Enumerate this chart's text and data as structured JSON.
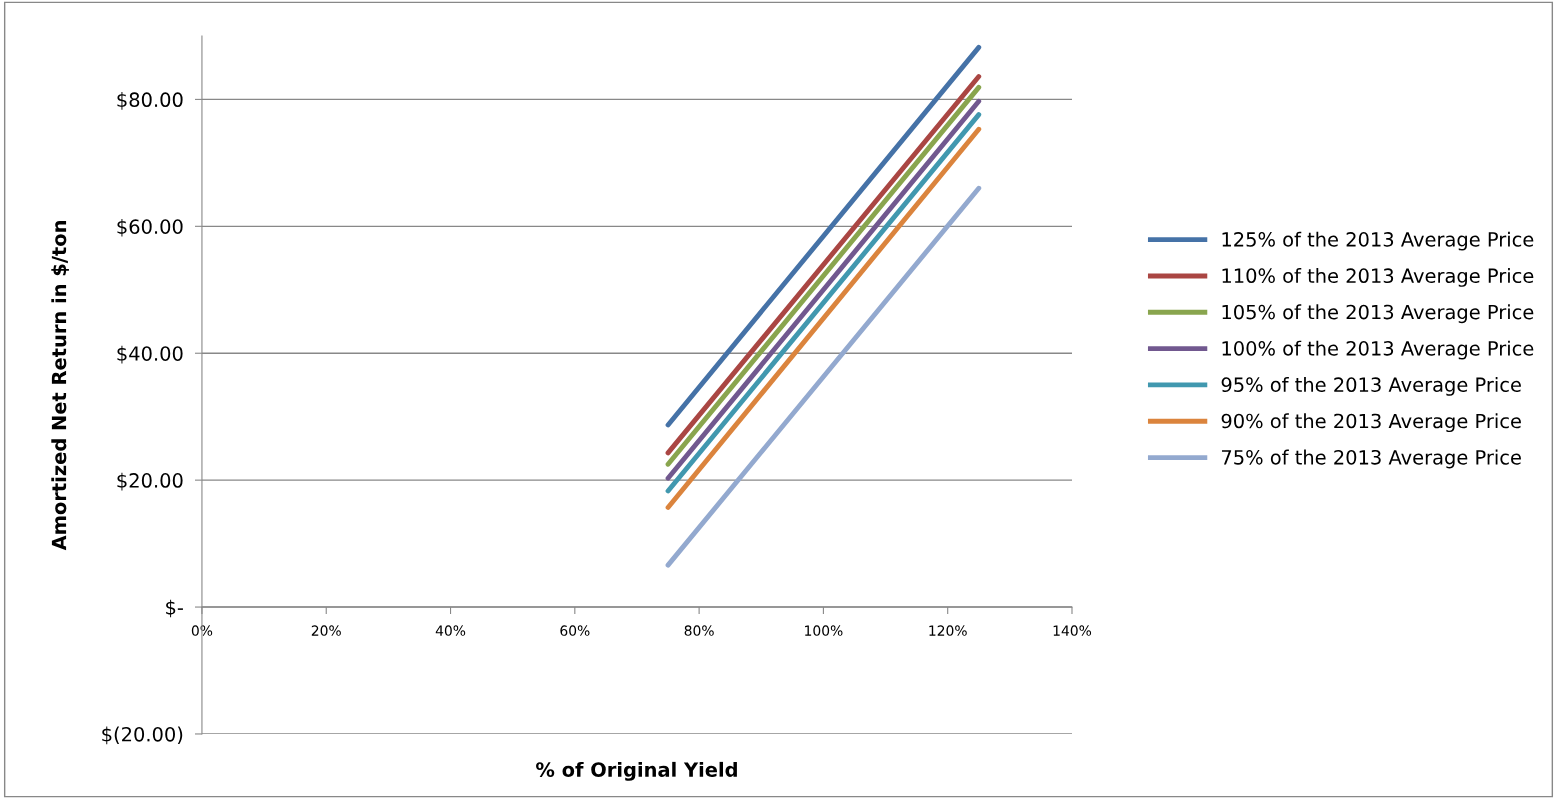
{
  "chart_data": {
    "type": "line",
    "xlabel": "% of Original Yield",
    "ylabel": "Amortized Net Return in $/ton",
    "x": [
      75,
      125
    ],
    "series": [
      {
        "name": "125% of the 2013 Average Price",
        "color": "#4572a7",
        "values": [
          28.7,
          88.2
        ]
      },
      {
        "name": "110% of the 2013 Average Price",
        "color": "#aa4643",
        "values": [
          24.3,
          83.6
        ]
      },
      {
        "name": "105% of the 2013 Average Price",
        "color": "#89a54e",
        "values": [
          22.5,
          81.9
        ]
      },
      {
        "name": "100% of the 2013 Average Price",
        "color": "#71588f",
        "values": [
          20.3,
          79.7
        ]
      },
      {
        "name": "95% of the 2013 Average Price",
        "color": "#4198af",
        "values": [
          18.3,
          77.6
        ]
      },
      {
        "name": "90% of the 2013 Average Price",
        "color": "#db843d",
        "values": [
          15.7,
          75.3
        ]
      },
      {
        "name": "75% of the 2013 Average Price",
        "color": "#93a9cf",
        "values": [
          6.6,
          66.0
        ]
      }
    ],
    "xlim": [
      0,
      140
    ],
    "xticks": [
      {
        "value": 0,
        "label": "0%"
      },
      {
        "value": 20,
        "label": "20%"
      },
      {
        "value": 40,
        "label": "40%"
      },
      {
        "value": 60,
        "label": "60%"
      },
      {
        "value": 80,
        "label": "80%"
      },
      {
        "value": 100,
        "label": "100%"
      },
      {
        "value": 120,
        "label": "120%"
      },
      {
        "value": 140,
        "label": "140%"
      }
    ],
    "ylim": [
      -20,
      90
    ],
    "yticks": [
      {
        "value": -20,
        "label": "$(20.00)"
      },
      {
        "value": 0,
        "label": "$-"
      },
      {
        "value": 20,
        "label": "$20.00"
      },
      {
        "value": 40,
        "label": "$40.00"
      },
      {
        "value": 60,
        "label": "$60.00"
      },
      {
        "value": 80,
        "label": "$80.00"
      }
    ],
    "grid": "y",
    "legend": "right",
    "marker": "none",
    "line_style": "solid"
  }
}
